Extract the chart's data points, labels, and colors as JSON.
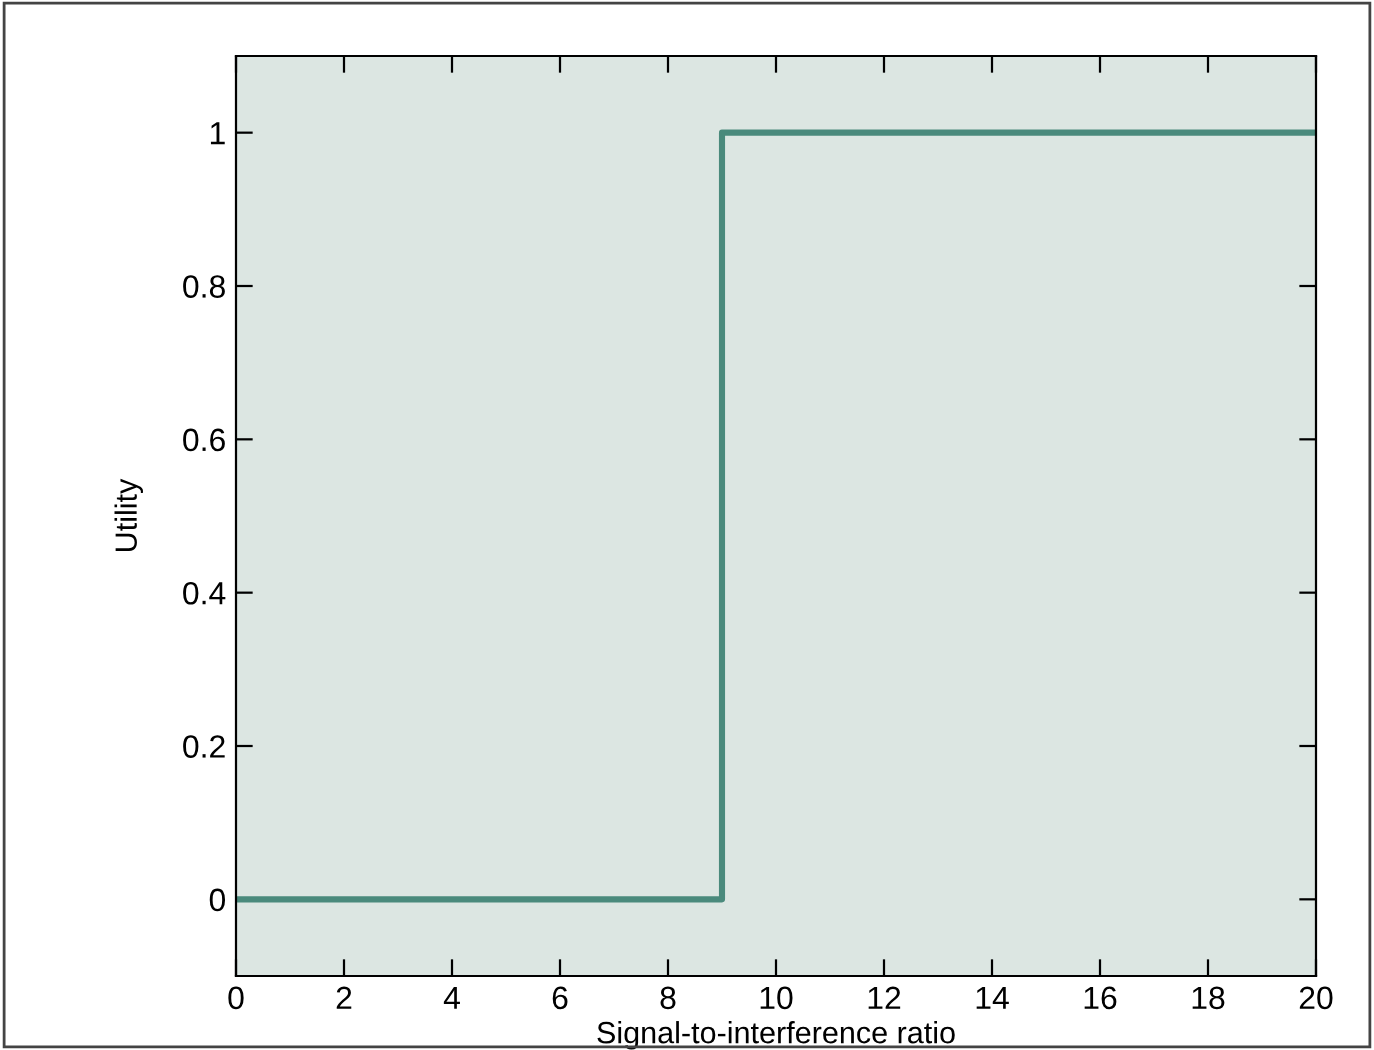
{
  "chart_data": {
    "type": "step",
    "xlabel": "Signal-to-interference ratio",
    "ylabel": "Utility",
    "x": [
      0,
      9,
      20
    ],
    "series": [
      {
        "color": "#4a8a7c",
        "values": [
          0,
          1,
          1
        ]
      }
    ],
    "xlim": [
      0,
      20
    ],
    "xticks": [
      0,
      2,
      4,
      6,
      8,
      10,
      12,
      14,
      16,
      18,
      20
    ],
    "ylim": [
      -0.1,
      1.1
    ],
    "yticks": [
      0,
      0.2,
      0.4,
      0.6,
      0.8,
      1
    ],
    "line_style": "solid",
    "marker": "none"
  }
}
